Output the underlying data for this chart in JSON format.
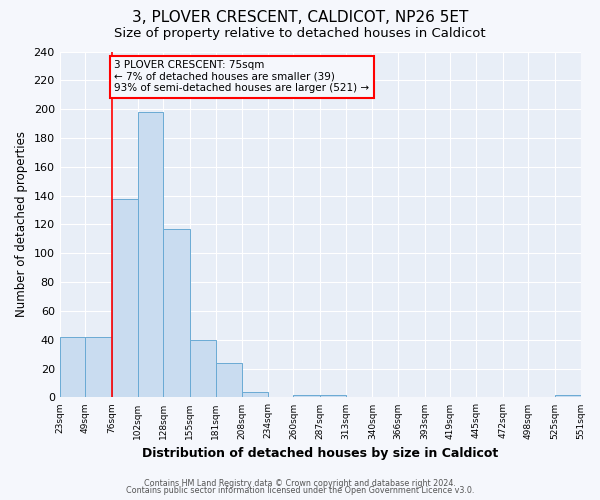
{
  "title": "3, PLOVER CRESCENT, CALDICOT, NP26 5ET",
  "subtitle": "Size of property relative to detached houses in Caldicot",
  "xlabel": "Distribution of detached houses by size in Caldicot",
  "ylabel": "Number of detached properties",
  "bar_values": [
    42,
    42,
    138,
    198,
    117,
    40,
    24,
    4,
    0,
    2,
    2,
    0,
    0,
    0,
    0,
    0,
    0,
    0,
    0,
    2
  ],
  "bin_edges": [
    23,
    49,
    76,
    102,
    128,
    155,
    181,
    208,
    234,
    260,
    287,
    313,
    340,
    366,
    393,
    419,
    445,
    472,
    498,
    525,
    551
  ],
  "tick_labels": [
    "23sqm",
    "49sqm",
    "76sqm",
    "102sqm",
    "128sqm",
    "155sqm",
    "181sqm",
    "208sqm",
    "234sqm",
    "260sqm",
    "287sqm",
    "313sqm",
    "340sqm",
    "366sqm",
    "393sqm",
    "419sqm",
    "445sqm",
    "472sqm",
    "498sqm",
    "525sqm",
    "551sqm"
  ],
  "bar_color": "#c9dcf0",
  "bar_edge_color": "#6aaad4",
  "red_line_x": 76,
  "ylim": [
    0,
    240
  ],
  "yticks": [
    0,
    20,
    40,
    60,
    80,
    100,
    120,
    140,
    160,
    180,
    200,
    220,
    240
  ],
  "annotation_title": "3 PLOVER CRESCENT: 75sqm",
  "annotation_line1": "← 7% of detached houses are smaller (39)",
  "annotation_line2": "93% of semi-detached houses are larger (521) →",
  "footer_line1": "Contains HM Land Registry data © Crown copyright and database right 2024.",
  "footer_line2": "Contains public sector information licensed under the Open Government Licence v3.0.",
  "plot_bg_color": "#e8eef7",
  "fig_bg_color": "#f5f7fc",
  "grid_color": "#ffffff",
  "title_fontsize": 11,
  "subtitle_fontsize": 9.5
}
